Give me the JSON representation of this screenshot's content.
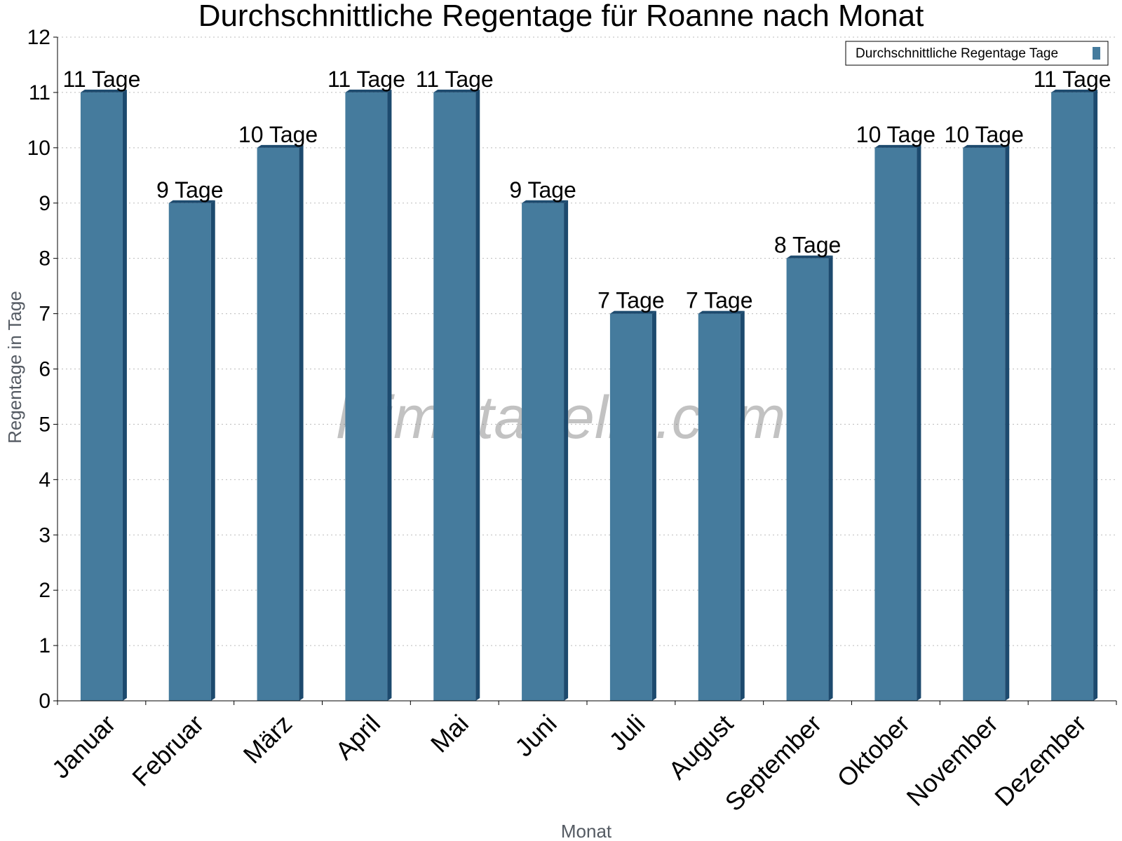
{
  "chart_data": {
    "type": "bar",
    "title": "Durchschnittliche Regentage für Roanne nach Monat",
    "xlabel": "Monat",
    "ylabel": "Regentage in Tage",
    "ylim": [
      0,
      12
    ],
    "yticks": [
      0,
      1,
      2,
      3,
      4,
      5,
      6,
      7,
      8,
      9,
      10,
      11,
      12
    ],
    "grid": true,
    "legend_position": "top-right",
    "categories": [
      "Januar",
      "Februar",
      "März",
      "April",
      "Mai",
      "Juni",
      "Juli",
      "August",
      "September",
      "Oktober",
      "November",
      "Dezember"
    ],
    "series": [
      {
        "name": "Durchschnittliche Regentage Tage",
        "values": [
          11,
          9,
          10,
          11,
          11,
          9,
          7,
          7,
          8,
          10,
          10,
          11
        ],
        "data_labels": [
          "11 Tage",
          "9 Tage",
          "10 Tage",
          "11 Tage",
          "11 Tage",
          "9 Tage",
          "7 Tage",
          "7 Tage",
          "8 Tage",
          "10 Tage",
          "10 Tage",
          "11 Tage"
        ],
        "color": "#457b9d",
        "side_color": "#1d4a6e"
      }
    ]
  },
  "watermark": "klimatabelle.com"
}
